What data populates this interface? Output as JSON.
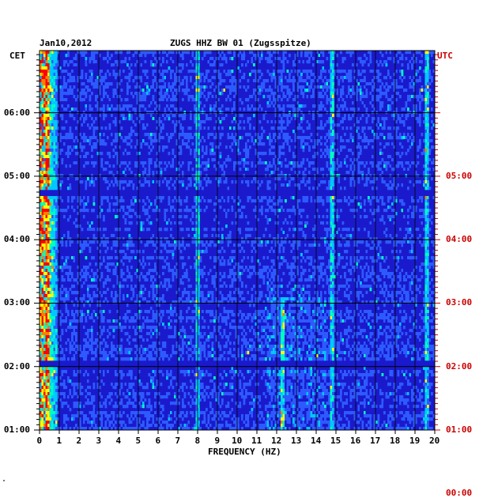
{
  "header": {
    "date": "Jan10,2012",
    "station": "ZUGS HHZ BW 01 (Zugsspitze)",
    "left_zone": "CET",
    "right_zone": "UTC"
  },
  "footer": {
    "corner_mark": "\""
  },
  "colors": {
    "utc_label": "#cc0000",
    "background_signal": "#1a1acc",
    "grid": "#000000"
  },
  "chart_data": {
    "type": "heatmap",
    "title": "ZUGS HHZ BW 01 (Zugsspitze)",
    "xlabel": "FREQUENCY (HZ)",
    "xlim": [
      0,
      20
    ],
    "x_ticks": [
      "0",
      "1",
      "2",
      "3",
      "4",
      "5",
      "6",
      "7",
      "8",
      "9",
      "10",
      "11",
      "12",
      "13",
      "14",
      "15",
      "16",
      "17",
      "18",
      "19",
      "20"
    ],
    "left_axis": {
      "zone": "CET",
      "ticks": [
        "06:00",
        "05:00",
        "04:00",
        "03:00",
        "02:00",
        "01:00"
      ],
      "values_hours": [
        6,
        5,
        4,
        3,
        2,
        1
      ]
    },
    "right_axis": {
      "zone": "UTC",
      "ticks": [
        "05:00",
        "04:00",
        "03:00",
        "02:00",
        "01:00",
        "00:00"
      ],
      "values_hours": [
        5,
        4,
        3,
        2,
        1,
        0
      ]
    },
    "time_range_cet_hours": [
      1.0,
      6.98
    ],
    "colormap": [
      "#0000aa",
      "#1a1acc",
      "#2d5aff",
      "#00c8ff",
      "#00ffc0",
      "#ffff00",
      "#ff8000",
      "#ff0000"
    ],
    "spectral_features": [
      {
        "frequency_hz": 0.4,
        "description": "strong low-frequency energy"
      },
      {
        "frequency_hz": 8.0,
        "description": "persistent line"
      },
      {
        "frequency_hz": 12.3,
        "description": "band energy 01:00-03:00"
      },
      {
        "frequency_hz": 14.8,
        "description": "strong persistent line"
      },
      {
        "frequency_hz": 19.6,
        "description": "persistent line"
      }
    ],
    "gaps_cet_hours": [
      4.75,
      2.05
    ]
  }
}
